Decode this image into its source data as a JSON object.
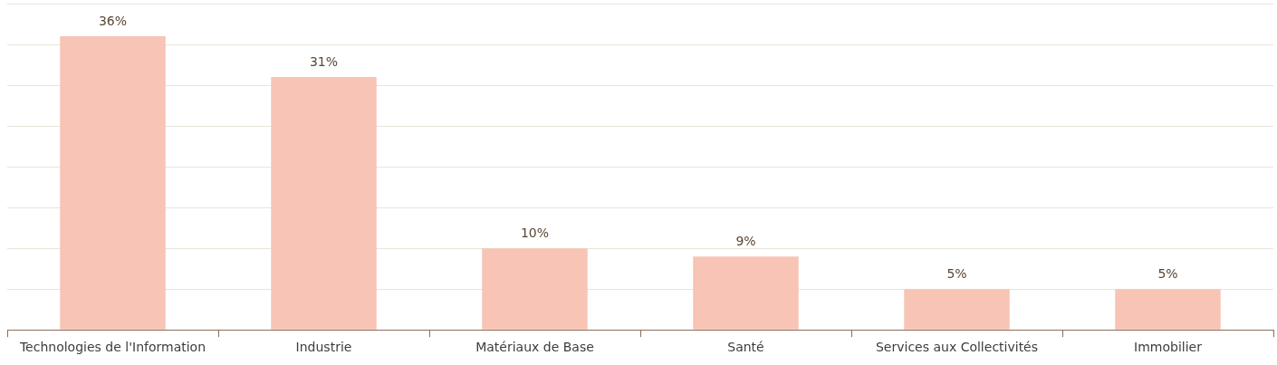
{
  "chart_data": {
    "type": "bar",
    "categories": [
      "Technologies de l'Information",
      "Industrie",
      "Matériaux de Base",
      "Santé",
      "Services aux Collectivités",
      "Immobilier"
    ],
    "values": [
      36,
      31,
      10,
      9,
      5,
      5
    ],
    "value_labels": [
      "36%",
      "31%",
      "10%",
      "9%",
      "5%",
      "5%"
    ],
    "color": "#f7c4b5",
    "ylim": [
      0,
      40
    ],
    "yticks": [
      {
        "value": 0,
        "label": null
      },
      {
        "value": 5,
        "label": null
      },
      {
        "value": 10,
        "label": null
      },
      {
        "value": 15,
        "label": null
      },
      {
        "value": 20,
        "label": null
      },
      {
        "value": 25,
        "label": null
      },
      {
        "value": 30,
        "label": null
      },
      {
        "value": 35,
        "label": null
      },
      {
        "value": 40,
        "label": null
      }
    ],
    "tick_labels": "x",
    "grid": "y",
    "legend": false
  }
}
